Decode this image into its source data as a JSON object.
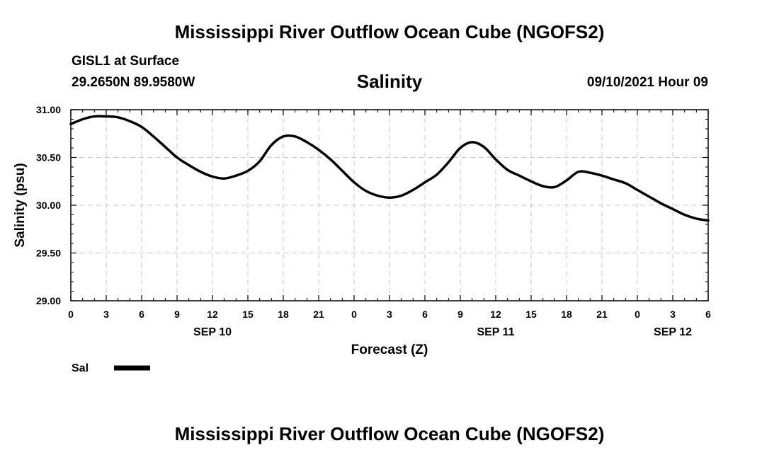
{
  "header": {
    "title": "Mississippi River Outflow Ocean Cube (NGOFS2)",
    "station": "GISL1 at Surface",
    "coordinates": "29.2650N  89.9580W",
    "variable": "Salinity",
    "datetime": "09/10/2021 Hour 09"
  },
  "footer": {
    "title": "Mississippi River Outflow Ocean Cube (NGOFS2)"
  },
  "chart_data": {
    "type": "line",
    "title": "Salinity",
    "xlabel": "Forecast (Z)",
    "ylabel": "Salinity (psu)",
    "ylim": [
      29.0,
      31.0
    ],
    "xlim": [
      0,
      54
    ],
    "grid": true,
    "x_unit": "hours since 2021-09-10 00Z",
    "x_ticks": [
      0,
      3,
      6,
      9,
      12,
      15,
      18,
      21,
      24,
      27,
      30,
      33,
      36,
      39,
      42,
      45,
      48,
      51,
      54
    ],
    "x_tick_labels": [
      "0",
      "3",
      "6",
      "9",
      "12",
      "15",
      "18",
      "21",
      "0",
      "3",
      "6",
      "9",
      "12",
      "15",
      "18",
      "21",
      "0",
      "3",
      "6"
    ],
    "y_ticks": [
      29.0,
      29.5,
      30.0,
      30.5,
      31.0
    ],
    "y_tick_labels": [
      "29.00",
      "29.50",
      "30.00",
      "30.50",
      "31.00"
    ],
    "date_labels": [
      {
        "x": 12,
        "label": "SEP 10"
      },
      {
        "x": 36,
        "label": "SEP 11"
      },
      {
        "x": 51,
        "label": "SEP 12"
      }
    ],
    "legend": {
      "position": "bottom-left",
      "entries": [
        {
          "name": "Sal",
          "color": "#000000"
        }
      ]
    },
    "series": [
      {
        "name": "Sal",
        "color": "#000000",
        "x": [
          0,
          1,
          2,
          3,
          4,
          5,
          6,
          7,
          8,
          9,
          10,
          11,
          12,
          13,
          14,
          15,
          16,
          17,
          18,
          19,
          20,
          21,
          22,
          23,
          24,
          25,
          26,
          27,
          28,
          29,
          30,
          31,
          32,
          33,
          34,
          35,
          36,
          37,
          38,
          39,
          40,
          41,
          42,
          43,
          44,
          45,
          46,
          47,
          48,
          49,
          50,
          51,
          52,
          53,
          54
        ],
        "values": [
          30.85,
          30.9,
          30.93,
          30.93,
          30.92,
          30.88,
          30.82,
          30.72,
          30.61,
          30.5,
          30.42,
          30.35,
          30.3,
          30.28,
          30.31,
          30.36,
          30.46,
          30.63,
          30.72,
          30.72,
          30.66,
          30.58,
          30.48,
          30.36,
          30.24,
          30.15,
          30.1,
          30.08,
          30.1,
          30.16,
          30.24,
          30.32,
          30.45,
          30.6,
          30.66,
          30.61,
          30.48,
          30.37,
          30.31,
          30.25,
          30.2,
          30.19,
          30.26,
          30.35,
          30.34,
          30.31,
          30.27,
          30.23,
          30.16,
          30.09,
          30.02,
          29.96,
          29.9,
          29.86,
          29.84
        ]
      }
    ]
  }
}
